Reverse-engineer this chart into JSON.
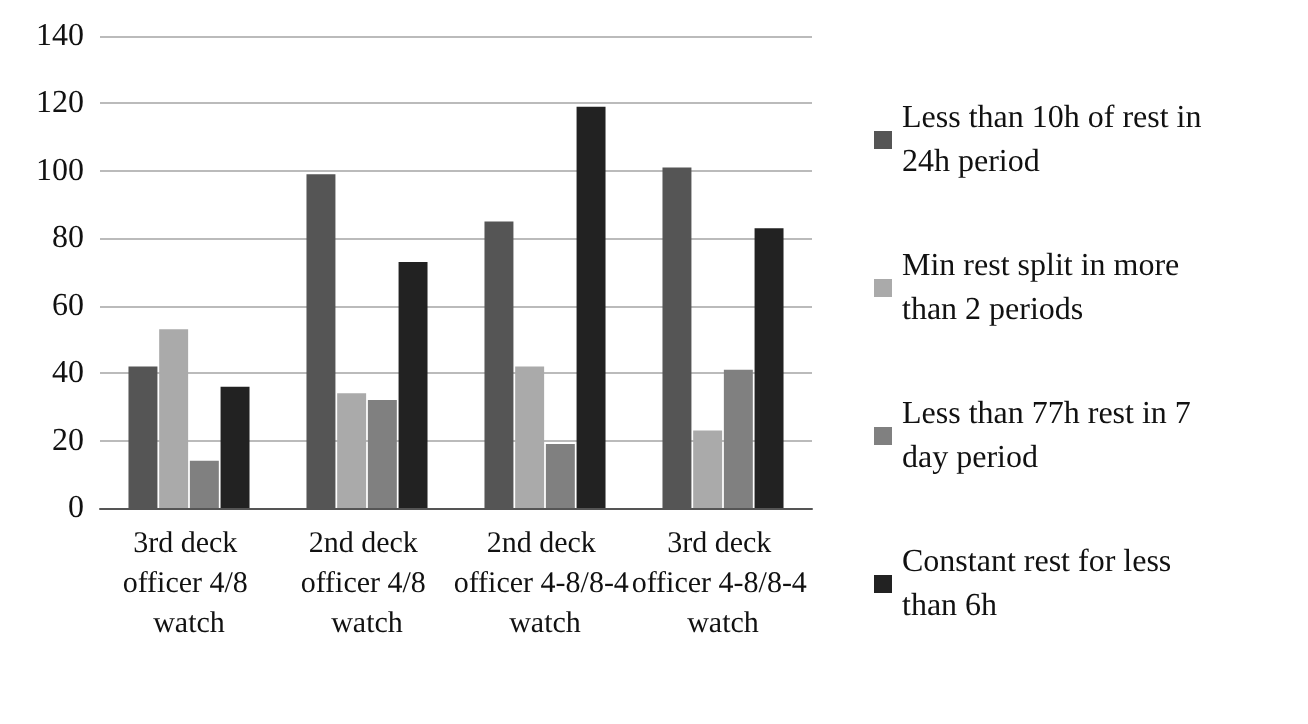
{
  "chart_data": {
    "type": "bar",
    "categories": [
      "3rd deck officer 4/8 watch",
      "2nd deck officer 4/8 watch",
      "2nd deck officer 4-8/8-4 watch",
      "3rd deck officer 4-8/8-4 watch"
    ],
    "series": [
      {
        "name": "Less than 10h of rest in 24h period",
        "color": "#555555",
        "values": [
          42,
          99,
          85,
          101
        ]
      },
      {
        "name": "Min rest split in more than 2 periods",
        "color": "#aaaaaa",
        "values": [
          53,
          34,
          42,
          23
        ]
      },
      {
        "name": "Less than 77h rest in 7 day period",
        "color": "#808080",
        "values": [
          14,
          32,
          19,
          41
        ]
      },
      {
        "name": "Constant rest for less than 6h",
        "color": "#222222",
        "values": [
          36,
          73,
          119,
          83
        ]
      }
    ],
    "ylim": [
      0,
      140
    ],
    "yticks": [
      0,
      20,
      40,
      60,
      80,
      100,
      120,
      140
    ],
    "grid": "y",
    "legend": "right"
  }
}
